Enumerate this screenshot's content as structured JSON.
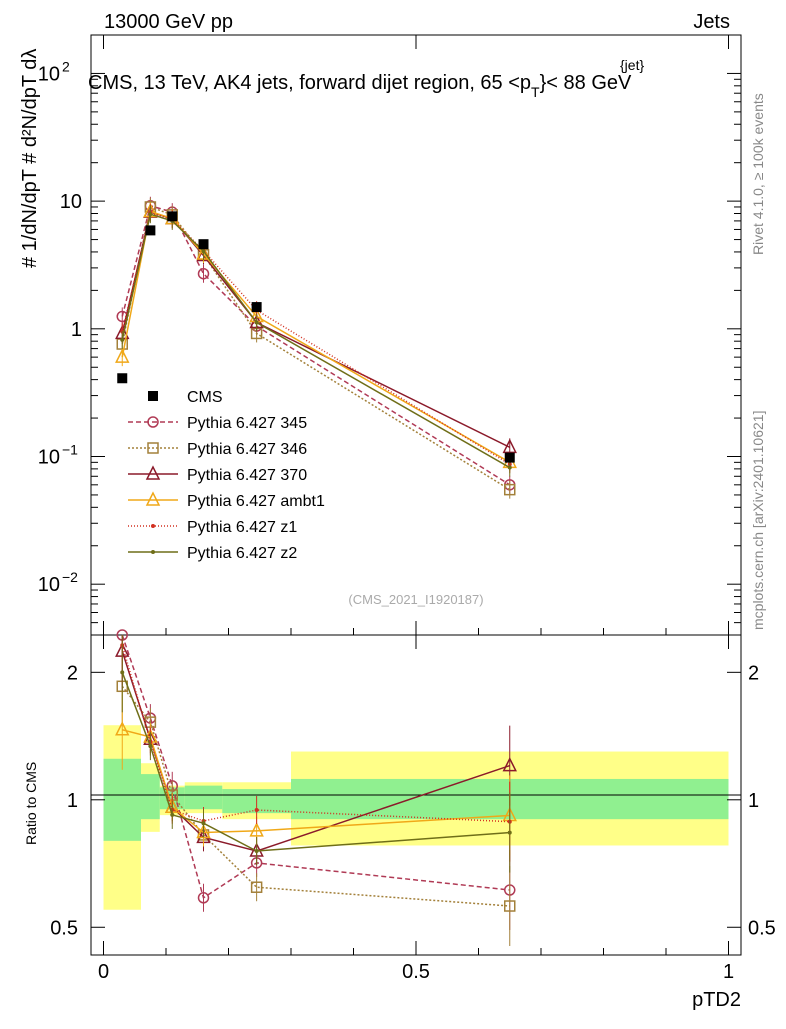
{
  "header": {
    "left": "13000 GeV pp",
    "right": "Jets"
  },
  "title": "CMS, 13 TeV, AK4 jets, forward dijet region, 65 <p",
  "title_sup": "{jet}",
  "title_sub": "T",
  "title_tail": "}< 88 GeV",
  "side_right_top": "Rivet 4.1.0, ≥ 100k events",
  "side_right_bottom": "mcplots.cern.ch [arXiv:2401.10621]",
  "watermark": "(CMS_2021_I1920187)",
  "ylabel_main": "# 1/dN/dpT # d²N/dpT dλ",
  "ylabel_ratio": "Ratio to CMS",
  "xlabel": "pTD2",
  "chart_data": {
    "type": "line",
    "x_axis": {
      "range": [
        -0.02,
        1.02
      ],
      "ticks": [
        0,
        0.5,
        1
      ],
      "tick_labels": [
        "0",
        "0.5",
        "1"
      ]
    },
    "main_y": {
      "scale": "log",
      "range": [
        0.004,
        200
      ],
      "ticks": [
        0.01,
        0.1,
        1,
        10,
        100
      ],
      "tick_labels": [
        "10",
        "10",
        "1",
        "10",
        "10"
      ],
      "tick_exponents": [
        "−2",
        "−1",
        "",
        "",
        "2"
      ]
    },
    "ratio_y": {
      "scale": "log",
      "range": [
        0.43,
        2.45
      ],
      "ticks": [
        0.5,
        1,
        2
      ],
      "tick_labels": [
        "0.5",
        "1",
        "2"
      ]
    },
    "bins": [
      0,
      0.06,
      0.09,
      0.13,
      0.19,
      0.3,
      1.0
    ],
    "x": [
      0.03,
      0.075,
      0.11,
      0.16,
      0.245,
      0.65
    ],
    "data": {
      "name": "CMS",
      "values": [
        0.41,
        5.9,
        7.6,
        4.6,
        1.48,
        0.098
      ]
    },
    "bands": {
      "inner": [
        [
          0.8,
          1.25
        ],
        [
          0.9,
          1.15
        ],
        [
          0.95,
          1.07
        ],
        [
          0.95,
          1.08
        ],
        [
          0.93,
          1.06
        ],
        [
          0.9,
          1.12
        ]
      ],
      "outer": [
        [
          0.55,
          1.5
        ],
        [
          0.84,
          1.22
        ],
        [
          0.92,
          1.08
        ],
        [
          0.93,
          1.1
        ],
        [
          0.9,
          1.1
        ],
        [
          0.78,
          1.3
        ]
      ]
    },
    "legend_label": "CMS",
    "series": [
      {
        "name": "Pythia 6.427 345",
        "color": "#b03a55",
        "dash": "5,3",
        "marker": "circle",
        "values": [
          1.25,
          9.2,
          8.2,
          2.7,
          1.05,
          0.06
        ]
      },
      {
        "name": "Pythia 6.427 346",
        "color": "#a3803a",
        "dash": "2,2",
        "marker": "square",
        "values": [
          0.76,
          9.0,
          7.8,
          3.8,
          0.92,
          0.055
        ]
      },
      {
        "name": "Pythia 6.427 370",
        "color": "#8b1a2a",
        "dash": "",
        "marker": "triangle",
        "values": [
          0.92,
          8.2,
          7.3,
          3.75,
          1.12,
          0.118
        ]
      },
      {
        "name": "Pythia 6.427 ambt1",
        "color": "#f0a818",
        "dash": "",
        "marker": "triangle",
        "values": [
          0.6,
          8.3,
          7.3,
          3.85,
          1.25,
          0.09
        ]
      },
      {
        "name": "Pythia 6.427 z1",
        "color": "#d23020",
        "dash": "1,2",
        "marker": "dot",
        "values": [
          0.95,
          8.1,
          7.2,
          4.1,
          1.4,
          0.087
        ]
      },
      {
        "name": "Pythia 6.427 z2",
        "color": "#6f6e18",
        "dash": "",
        "marker": "dot",
        "values": [
          0.82,
          7.9,
          7.0,
          4.05,
          1.12,
          0.082
        ]
      }
    ]
  }
}
